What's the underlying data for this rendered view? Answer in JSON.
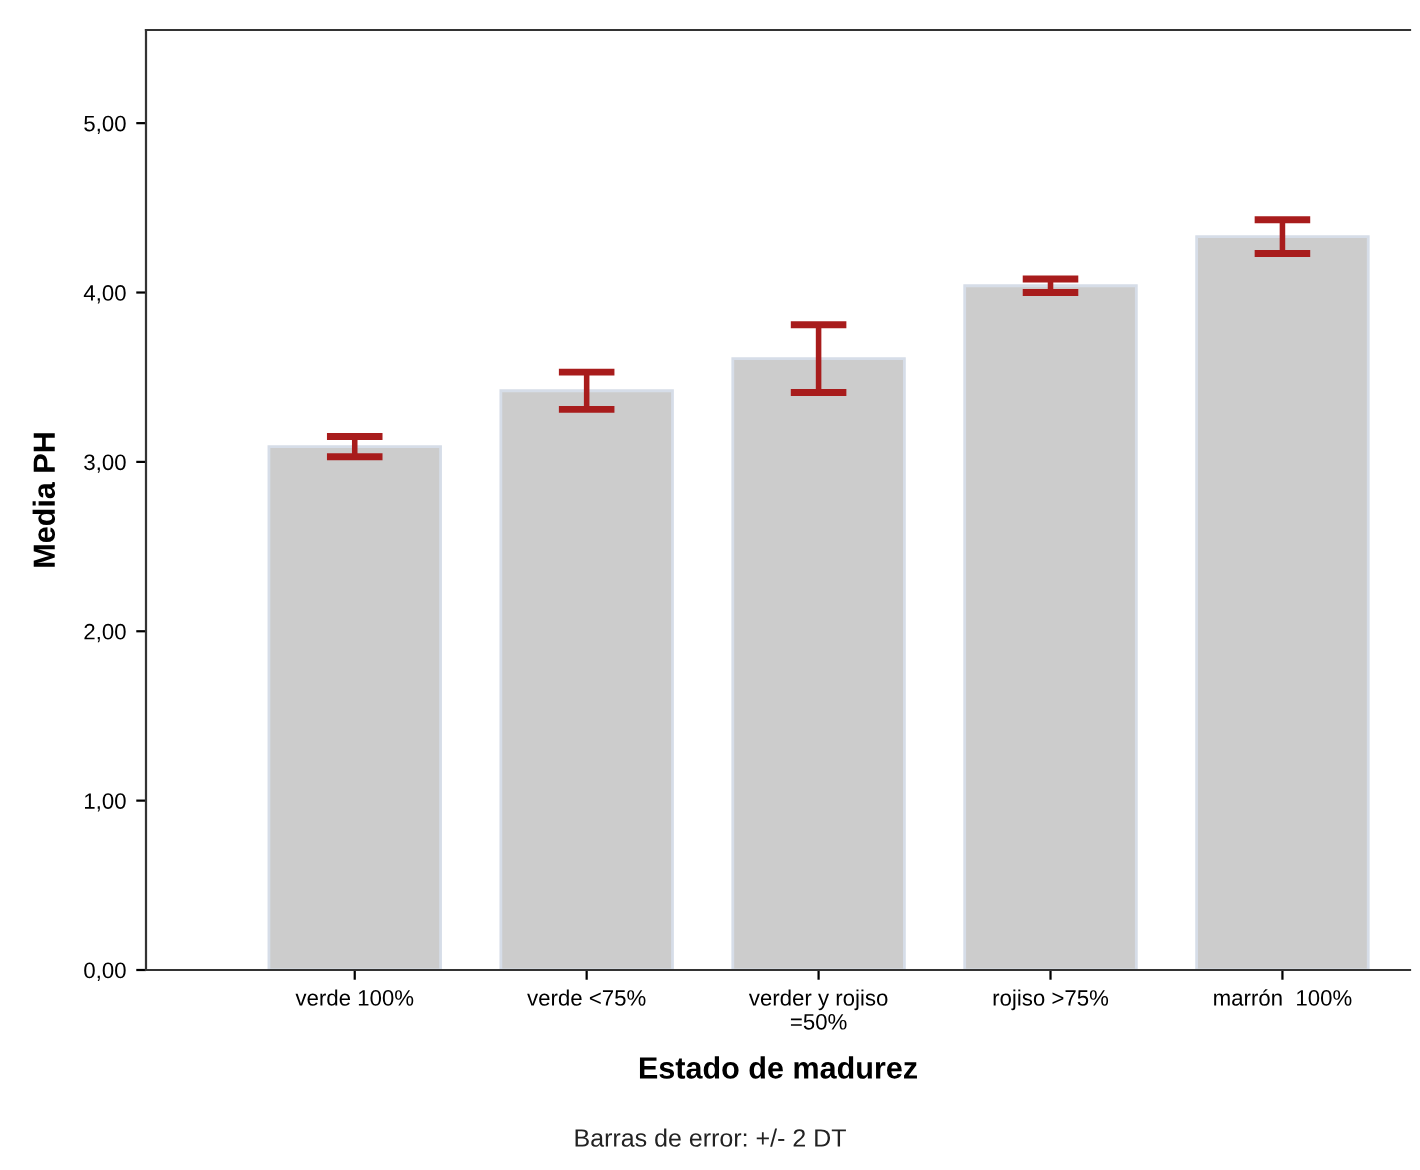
{
  "chart_data": {
    "type": "bar",
    "xlabel": "Estado de madurez",
    "ylabel": "Media PH",
    "categories": [
      "verde 100%",
      "verde <75%",
      "verder y rojiso\n=50%",
      "rojiso >75%",
      "marrón  100%"
    ],
    "values": [
      3.09,
      3.42,
      3.61,
      4.04,
      4.33
    ],
    "errors": [
      0.06,
      0.11,
      0.2,
      0.04,
      0.1
    ],
    "color": "#cccccc",
    "ylim": [
      0,
      5.55
    ],
    "yticks": [
      {
        "value": 0,
        "label": "0,00"
      },
      {
        "value": 1,
        "label": "1,00"
      },
      {
        "value": 2,
        "label": "2,00"
      },
      {
        "value": 3,
        "label": "3,00"
      },
      {
        "value": 4,
        "label": "4,00"
      },
      {
        "value": 5,
        "label": "5,00"
      }
    ],
    "grid": false,
    "legend": false,
    "annotations": [
      "Barras de error: +/- 2 DT"
    ]
  }
}
